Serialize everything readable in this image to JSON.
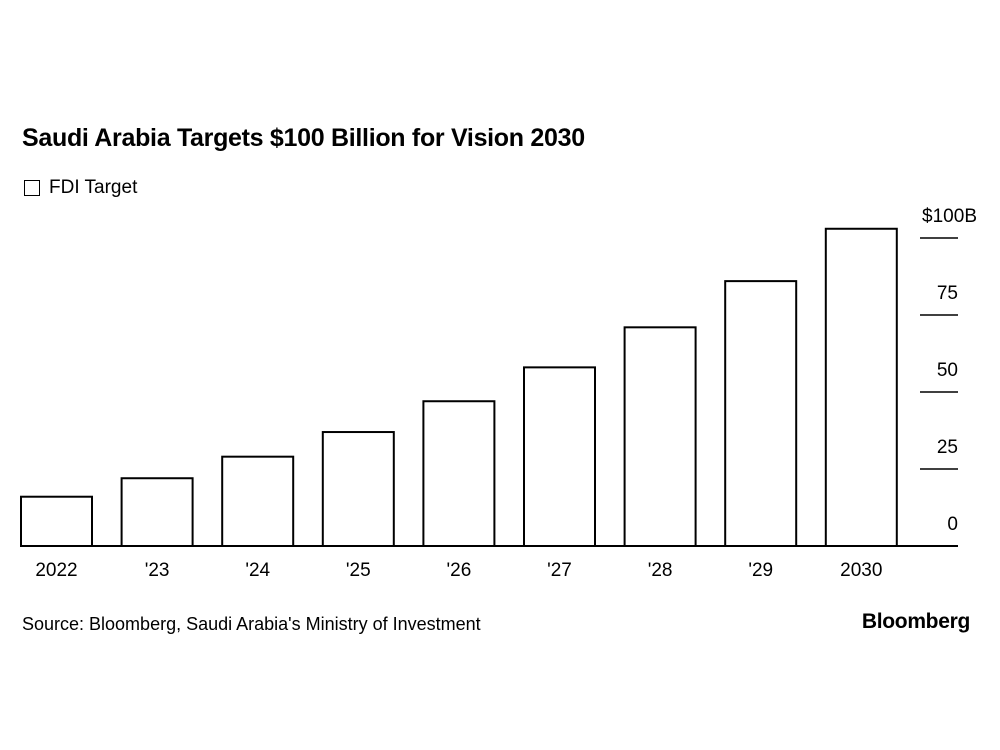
{
  "chart_data": {
    "type": "bar",
    "title": "Saudi Arabia Targets $100 Billion for Vision 2030",
    "legend": [
      "FDI Target"
    ],
    "legend_placement": "top-left",
    "categories": [
      "2022",
      "'23",
      "'24",
      "'25",
      "'26",
      "'27",
      "'28",
      "'29",
      "2030"
    ],
    "series": [
      {
        "name": "FDI Target",
        "values": [
          16,
          22,
          29,
          37,
          47,
          58,
          71,
          86,
          103
        ]
      }
    ],
    "ylim": [
      0,
      100
    ],
    "yticks": [
      0,
      25,
      50,
      75,
      100
    ],
    "ytick_labels": [
      "0",
      "25",
      "50",
      "75",
      "$100B"
    ],
    "y_axis_side": "right",
    "grid": false,
    "bar_fill": "#ffffff",
    "bar_stroke": "#000000"
  },
  "source": "Source: Bloomberg, Saudi Arabia's Ministry of Investment",
  "brand": "Bloomberg"
}
